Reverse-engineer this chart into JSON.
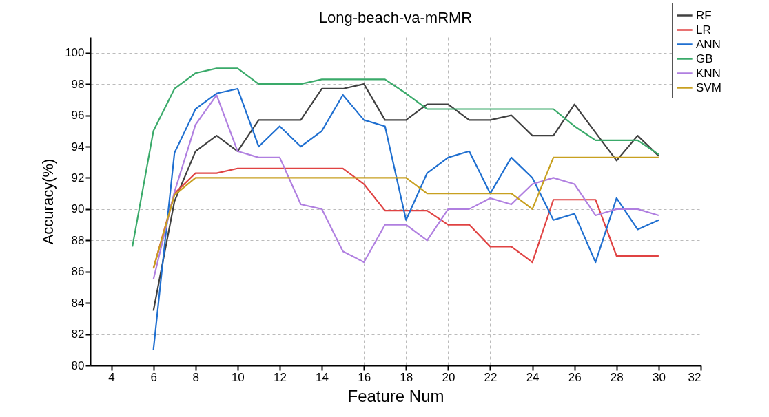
{
  "chart_data": {
    "type": "line",
    "title": "Long-beach-va-mRMR",
    "xlabel": "Feature Num",
    "ylabel": "Accuracy(%)",
    "xlim": [
      3,
      32
    ],
    "xticks": [
      4,
      6,
      8,
      10,
      12,
      14,
      16,
      18,
      20,
      22,
      24,
      26,
      28,
      30,
      32
    ],
    "ylim": [
      80,
      101
    ],
    "yticks": [
      80,
      82,
      84,
      86,
      88,
      90,
      92,
      94,
      96,
      98,
      100
    ],
    "grid": true,
    "legend": "top right",
    "series": [
      {
        "name": "RF",
        "color": "#404040",
        "x": [
          6,
          7,
          8,
          9,
          10,
          11,
          12,
          13,
          14,
          15,
          16,
          17,
          18,
          19,
          20,
          21,
          22,
          23,
          24,
          25,
          26,
          27,
          28,
          29,
          30
        ],
        "values": [
          83.5,
          90.5,
          93.7,
          94.7,
          93.7,
          95.7,
          95.7,
          95.7,
          97.7,
          97.7,
          98.0,
          95.7,
          95.7,
          96.7,
          96.7,
          95.7,
          95.7,
          96.0,
          94.7,
          94.7,
          96.7,
          94.9,
          93.1,
          94.7,
          93.4
        ]
      },
      {
        "name": "LR",
        "color": "#e04343",
        "x": [
          6,
          7,
          8,
          9,
          10,
          11,
          12,
          13,
          14,
          15,
          16,
          17,
          18,
          19,
          20,
          21,
          22,
          23,
          24,
          25,
          26,
          27,
          28,
          29,
          30
        ],
        "values": [
          86.2,
          91.0,
          92.3,
          92.3,
          92.6,
          92.6,
          92.6,
          92.6,
          92.6,
          92.6,
          91.6,
          89.9,
          89.9,
          89.9,
          89.0,
          89.0,
          87.6,
          87.6,
          86.6,
          90.6,
          90.6,
          90.6,
          87.0,
          87.0,
          87.0
        ]
      },
      {
        "name": "ANN",
        "color": "#1f6fd0",
        "x": [
          6,
          7,
          8,
          9,
          10,
          11,
          12,
          13,
          14,
          15,
          16,
          17,
          18,
          19,
          20,
          21,
          22,
          23,
          24,
          25,
          26,
          27,
          28,
          29,
          30
        ],
        "values": [
          81.0,
          93.6,
          96.4,
          97.4,
          97.7,
          94.0,
          95.3,
          94.0,
          95.0,
          97.3,
          95.7,
          95.3,
          89.3,
          92.3,
          93.3,
          93.7,
          91.0,
          93.3,
          92.0,
          89.3,
          89.7,
          86.6,
          90.7,
          88.7,
          89.3
        ]
      },
      {
        "name": "GB",
        "color": "#3aaa6a",
        "x": [
          5,
          6,
          7,
          8,
          9,
          10,
          11,
          12,
          13,
          14,
          15,
          16,
          17,
          18,
          19,
          20,
          21,
          22,
          23,
          24,
          25,
          26,
          27,
          28,
          29,
          30
        ],
        "values": [
          87.6,
          95.0,
          97.7,
          98.7,
          99.0,
          99.0,
          98.0,
          98.0,
          98.0,
          98.3,
          98.3,
          98.3,
          98.3,
          97.4,
          96.4,
          96.4,
          96.4,
          96.4,
          96.4,
          96.4,
          96.4,
          95.3,
          94.4,
          94.4,
          94.4,
          93.5
        ]
      },
      {
        "name": "KNN",
        "color": "#b07fe0",
        "x": [
          6,
          7,
          8,
          9,
          10,
          11,
          12,
          13,
          14,
          15,
          16,
          17,
          18,
          19,
          20,
          21,
          22,
          23,
          24,
          25,
          26,
          27,
          28,
          29,
          30
        ],
        "values": [
          85.5,
          91.1,
          95.4,
          97.3,
          93.7,
          93.3,
          93.3,
          90.3,
          90.0,
          87.3,
          86.6,
          89.0,
          89.0,
          88.0,
          90.0,
          90.0,
          90.7,
          90.3,
          91.6,
          92.0,
          91.6,
          89.6,
          90.0,
          90.0,
          89.6
        ]
      },
      {
        "name": "SVM",
        "color": "#c8a020",
        "x": [
          6,
          7,
          8,
          9,
          10,
          11,
          12,
          13,
          14,
          15,
          16,
          17,
          18,
          19,
          20,
          21,
          22,
          23,
          24,
          25,
          26,
          27,
          28,
          29,
          30
        ],
        "values": [
          86.2,
          90.9,
          92.0,
          92.0,
          92.0,
          92.0,
          92.0,
          92.0,
          92.0,
          92.0,
          92.0,
          92.0,
          92.0,
          91.0,
          91.0,
          91.0,
          91.0,
          91.0,
          90.0,
          93.3,
          93.3,
          93.3,
          93.3,
          93.3,
          93.3
        ]
      }
    ]
  }
}
